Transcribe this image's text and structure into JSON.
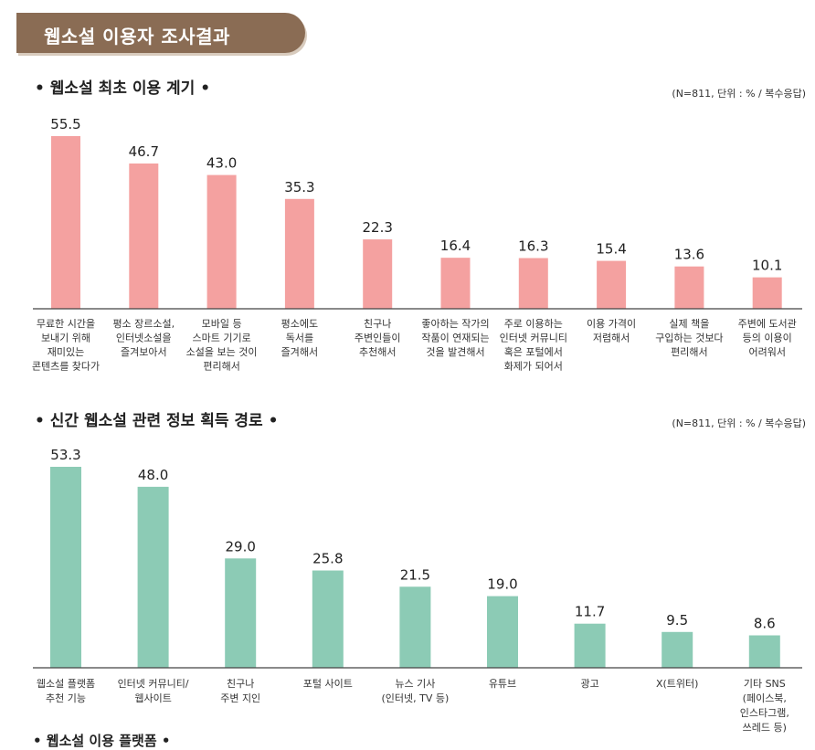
{
  "header": {
    "title": "웹소설 이용자 조사결과"
  },
  "colors": {
    "banner": "#8a6c54",
    "chart1_bar": "#f4a1a0",
    "chart2_bar": "#8ccbb5",
    "axis": "#444444"
  },
  "chart_data": [
    {
      "type": "bar",
      "title": "• 웹소설 최초 이용 계기 •",
      "note": "(N=811, 단위 : % / 복수응답)",
      "categories": [
        [
          "무료한 시간을",
          "보내기 위해",
          "재미있는",
          "콘텐츠를 찾다가"
        ],
        [
          "평소 장르소설,",
          "인터넷소설을",
          "즐겨보아서"
        ],
        [
          "모바일 등",
          "스마트 기기로",
          "소설을 보는 것이",
          "편리해서"
        ],
        [
          "평소에도",
          "독서를",
          "즐겨해서"
        ],
        [
          "친구나",
          "주변인들이",
          "추천해서"
        ],
        [
          "좋아하는 작가의",
          "작품이 연재되는",
          "것을 발견해서"
        ],
        [
          "주로 이용하는",
          "인터넷 커뮤니티",
          "혹은 포털에서",
          "화제가 되어서"
        ],
        [
          "이용 가격이",
          "저렴해서"
        ],
        [
          "실제 책을",
          "구입하는 것보다",
          "편리해서"
        ],
        [
          "주변에 도서관",
          "등의 이용이",
          "어려워서"
        ]
      ],
      "value_labels": [
        "55.5",
        "46.7",
        "43.0",
        "35.3",
        "22.3",
        "16.4",
        "16.3",
        "15.4",
        "13.6",
        "10.1"
      ],
      "values": [
        55.5,
        46.7,
        43.0,
        35.3,
        22.3,
        16.4,
        16.3,
        15.4,
        13.6,
        10.1
      ],
      "ylim": [
        0,
        55.5
      ],
      "xlabel": "",
      "ylabel": ""
    },
    {
      "type": "bar",
      "title": "• 신간 웹소설 관련 정보 획득 경로 •",
      "note": "(N=811, 단위 : % / 복수응답)",
      "categories": [
        [
          "웹소설 플랫폼",
          "추천 기능"
        ],
        [
          "인터넷 커뮤니티/",
          "웹사이트"
        ],
        [
          "친구나",
          "주변 지인"
        ],
        [
          "포털 사이트"
        ],
        [
          "뉴스 기사",
          "(인터넷, TV 등)"
        ],
        [
          "유튜브"
        ],
        [
          "광고"
        ],
        [
          "X(트위터)"
        ],
        [
          "기타 SNS",
          "(페이스북,",
          "인스타그램,",
          "쓰레드 등)"
        ]
      ],
      "value_labels": [
        "53.3",
        "48.0",
        "29.0",
        "25.8",
        "21.5",
        "19.0",
        "11.7",
        "9.5",
        "8.6"
      ],
      "values": [
        53.3,
        48.0,
        29.0,
        25.8,
        21.5,
        19.0,
        11.7,
        9.5,
        8.6
      ],
      "ylim": [
        0,
        53.3
      ],
      "xlabel": "",
      "ylabel": ""
    }
  ],
  "next_section": {
    "title": "• 웹소설 이용 플랫폼 •"
  }
}
